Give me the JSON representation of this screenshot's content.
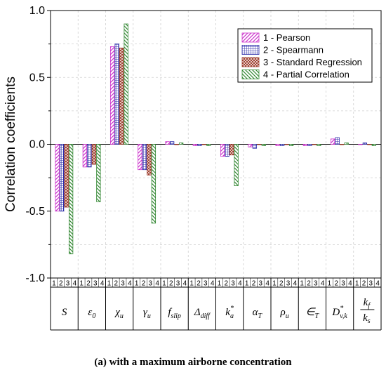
{
  "chart_data": {
    "type": "bar",
    "title": "",
    "ylabel": "Correlation coefficients",
    "ylim": [
      -1.0,
      1.0
    ],
    "yticks": [
      "1.0",
      "0.5",
      "0.0",
      "-0.5",
      "-1.0"
    ],
    "ytick_values": [
      1.0,
      0.5,
      0.0,
      -0.5,
      -1.0
    ],
    "grid": true,
    "legend_position": "top-right",
    "sub_index_labels": [
      "1",
      "2",
      "3",
      "4"
    ],
    "categories": [
      {
        "base": "S",
        "sub": "",
        "sup": ""
      },
      {
        "base": "ε",
        "sub": "0",
        "sup": ""
      },
      {
        "base": "χ",
        "sub": "u",
        "sup": ""
      },
      {
        "base": "γ",
        "sub": "u",
        "sup": ""
      },
      {
        "base": "f",
        "sub": "slip",
        "sup": ""
      },
      {
        "base": "Δ",
        "sub": "diff",
        "sup": ""
      },
      {
        "base": "k",
        "sub": "a",
        "sup": "*"
      },
      {
        "base": "α",
        "sub": "T",
        "sup": ""
      },
      {
        "base": "ρ",
        "sub": "u",
        "sup": ""
      },
      {
        "base": "∈",
        "sub": "T",
        "sup": ""
      },
      {
        "base": "D",
        "sub": "v,k",
        "sup": "*"
      },
      {
        "base": "k_f/k_s",
        "sub": "",
        "sup": ""
      }
    ],
    "series": [
      {
        "name": "1 - Pearson",
        "color": "#cc33cc",
        "pattern": "diag-right",
        "values": [
          -0.5,
          -0.17,
          0.73,
          -0.19,
          0.02,
          -0.01,
          -0.09,
          -0.02,
          -0.01,
          -0.01,
          0.04,
          0.0
        ]
      },
      {
        "name": "2 - Spearmann",
        "color": "#2a2aa8",
        "pattern": "grid",
        "values": [
          -0.5,
          -0.17,
          0.75,
          -0.19,
          0.02,
          -0.01,
          -0.09,
          -0.03,
          -0.01,
          -0.01,
          0.05,
          0.01
        ]
      },
      {
        "name": "3 - Standard Regression",
        "color": "#993322",
        "pattern": "crosshatch",
        "values": [
          -0.47,
          -0.15,
          0.72,
          -0.23,
          0.0,
          0.0,
          -0.08,
          0.0,
          0.0,
          0.0,
          0.0,
          0.0
        ]
      },
      {
        "name": "4 - Partial Correlation",
        "color": "#338833",
        "pattern": "diag-left",
        "values": [
          -0.82,
          -0.43,
          0.9,
          -0.59,
          0.01,
          -0.01,
          -0.31,
          -0.01,
          -0.01,
          -0.01,
          0.01,
          -0.01
        ]
      }
    ]
  },
  "caption": "(a) with a maximum airborne concentration"
}
